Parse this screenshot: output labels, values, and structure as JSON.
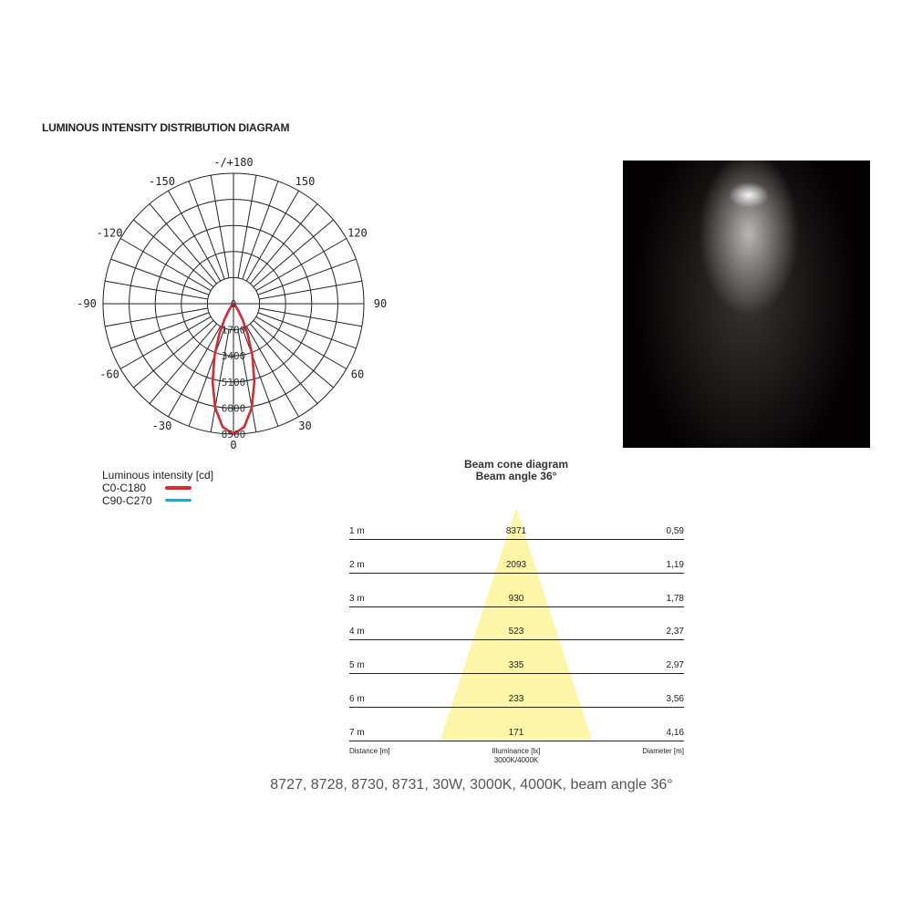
{
  "title": "LUMINOUS INTENSITY DISTRIBUTION DIAGRAM",
  "chart_data": [
    {
      "type": "polar",
      "angle_labels": [
        "-/+180",
        "150",
        "120",
        "90",
        "60",
        "30",
        "0",
        "-30",
        "-60",
        "-90",
        "-120",
        "-150"
      ],
      "angle_label_values": [
        180,
        150,
        120,
        90,
        60,
        30,
        0,
        -30,
        -60,
        -90,
        -120,
        -150
      ],
      "radial_ticks": [
        0,
        1700,
        3400,
        5100,
        6800,
        8500
      ],
      "radial_tick_labels": [
        "0",
        "1700",
        "3400",
        "5100",
        "6800",
        "8500"
      ],
      "rlim": [
        0,
        8500
      ],
      "grid": true,
      "angle_step_deg": 10,
      "legend_title": "Luminous intensity [cd]",
      "legend_position": "bottom-left",
      "angles_deg": [
        0,
        5,
        10,
        15,
        20,
        25,
        30,
        35,
        40,
        45,
        50,
        60,
        90
      ],
      "series": [
        {
          "name": "C0-C180",
          "color": "#e3262c",
          "values": [
            8500,
            8070,
            6880,
            5260,
            3600,
            2190,
            1170,
            540,
            220,
            80,
            25,
            0,
            0
          ]
        },
        {
          "name": "C90-C270",
          "color": "#1ea7db",
          "values": [
            8500,
            8070,
            6880,
            5260,
            3600,
            2190,
            1170,
            540,
            220,
            80,
            25,
            0,
            0
          ]
        }
      ]
    },
    {
      "type": "table",
      "title": "Beam cone diagram",
      "subtitle": "Beam angle 36°",
      "beam_angle_deg": 36,
      "cone_color": "#fdf6a8",
      "columns": [
        "Distance [m]",
        "Illuminance [lx]",
        "Diameter [m]"
      ],
      "illuminance_sub": "3000K/4000K",
      "rows": [
        {
          "distance": "1 m",
          "illuminance": "8371",
          "diameter": "0,59"
        },
        {
          "distance": "2 m",
          "illuminance": "2093",
          "diameter": "1,19"
        },
        {
          "distance": "3 m",
          "illuminance": "930",
          "diameter": "1,78"
        },
        {
          "distance": "4 m",
          "illuminance": "523",
          "diameter": "2,37"
        },
        {
          "distance": "5 m",
          "illuminance": "335",
          "diameter": "2,97"
        },
        {
          "distance": "6 m",
          "illuminance": "233",
          "diameter": "3,56"
        },
        {
          "distance": "7 m",
          "illuminance": "171",
          "diameter": "4,16"
        }
      ]
    }
  ],
  "caption": "8727, 8728, 8730, 8731, 30W, 3000K, 4000K, beam angle 36°"
}
